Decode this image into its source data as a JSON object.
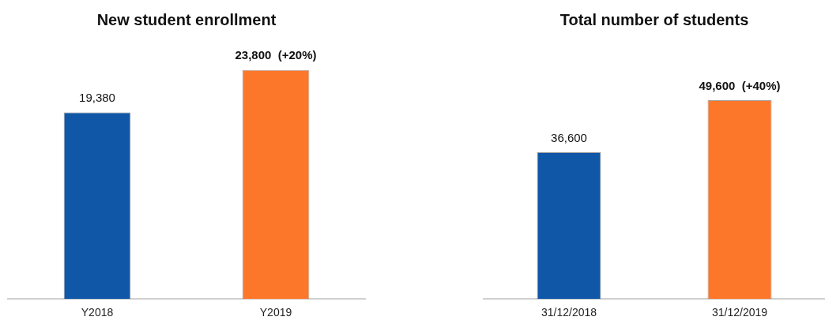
{
  "chart_data": [
    {
      "type": "bar",
      "title": "New student enrollment",
      "categories": [
        "Y2018",
        "Y2019"
      ],
      "values": [
        19380,
        23800
      ],
      "colors": [
        "#1057a8",
        "#fd772a"
      ],
      "value_labels": [
        "19,380",
        "23,800  (+20%)"
      ],
      "grid": false,
      "legend": false,
      "tick_labels": "x"
    },
    {
      "type": "bar",
      "title": "Total number of students",
      "categories": [
        "31/12/2018",
        "31/12/2019"
      ],
      "values": [
        36600,
        49600
      ],
      "colors": [
        "#1057a8",
        "#fd772a"
      ],
      "value_labels": [
        "36,600",
        "49,600  (+40%)"
      ],
      "grid": false,
      "legend": false,
      "tick_labels": "x"
    }
  ]
}
